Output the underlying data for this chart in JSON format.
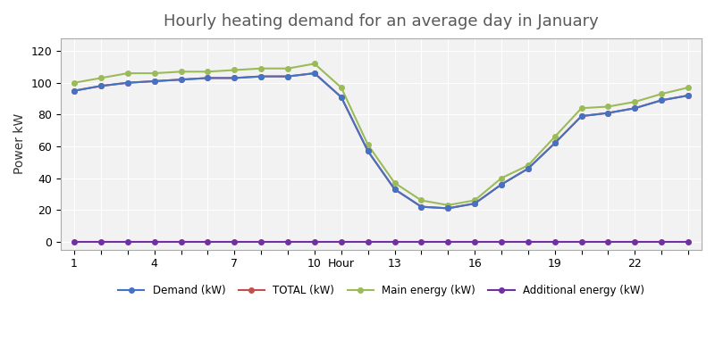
{
  "title": "Hourly heating demand for an average day in January",
  "ylabel": "Power kW",
  "hours": [
    1,
    2,
    3,
    4,
    5,
    6,
    7,
    8,
    9,
    10,
    11,
    12,
    13,
    14,
    15,
    16,
    17,
    18,
    19,
    20,
    21,
    22,
    23,
    24
  ],
  "demand": [
    95,
    98,
    100,
    101,
    102,
    103,
    103,
    104,
    104,
    106,
    91,
    57,
    33,
    22,
    21,
    24,
    36,
    46,
    62,
    79,
    81,
    84,
    89,
    92
  ],
  "total": [
    95,
    98,
    100,
    101,
    102,
    103,
    103,
    104,
    104,
    106,
    91,
    57,
    33,
    22,
    21,
    24,
    36,
    46,
    62,
    79,
    81,
    84,
    89,
    92
  ],
  "main_energy": [
    100,
    103,
    106,
    106,
    107,
    107,
    108,
    109,
    109,
    112,
    97,
    61,
    37,
    26,
    23,
    26,
    40,
    48,
    66,
    84,
    85,
    88,
    93,
    97
  ],
  "additional_energy": [
    0,
    0,
    0,
    0,
    0,
    0,
    0,
    0,
    0,
    0,
    0,
    0,
    0,
    0,
    0,
    0,
    0,
    0,
    0,
    0,
    0,
    0,
    0,
    0
  ],
  "demand_color": "#4472C4",
  "total_color": "#C0504D",
  "main_energy_color": "#9BBB59",
  "additional_energy_color": "#7030A0",
  "xtick_labels": [
    "1",
    "",
    "",
    "4",
    "",
    "",
    "7",
    "",
    "",
    "10",
    "Hour",
    "",
    "13",
    "",
    "",
    "16",
    "",
    "",
    "19",
    "",
    "",
    "22",
    "",
    ""
  ],
  "ylim": [
    -5,
    128
  ],
  "yticks": [
    0,
    20,
    40,
    60,
    80,
    100,
    120
  ],
  "bg_color": "#FFFFFF",
  "plot_bg_color": "#F2F2F2",
  "grid_color": "#FFFFFF",
  "title_color": "#595959",
  "title_fontsize": 13,
  "legend_labels": [
    "Demand (kW)",
    "TOTAL (kW)",
    "Main energy (kW)",
    "Additional energy (kW)"
  ]
}
